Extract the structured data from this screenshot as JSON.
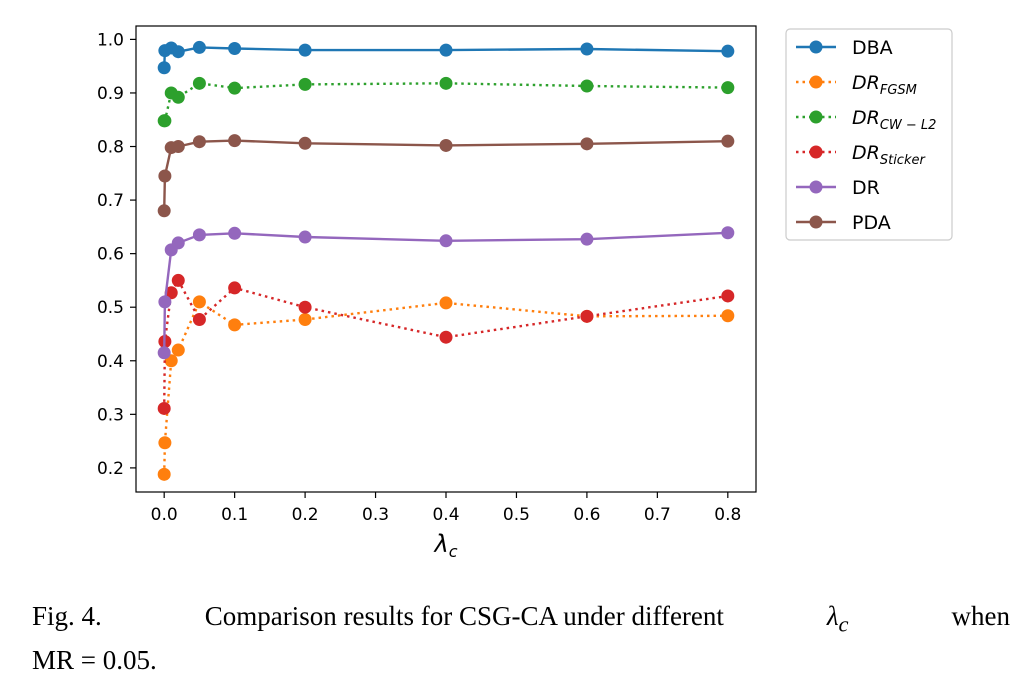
{
  "chart_data": {
    "type": "line",
    "xlabel": "λ",
    "xlabel_sub": "c",
    "xlim": [
      -0.04,
      0.84
    ],
    "ylim": [
      0.155,
      1.025
    ],
    "x_ticks": [
      0.0,
      0.1,
      0.2,
      0.3,
      0.4,
      0.5,
      0.6,
      0.7,
      0.8
    ],
    "x_tick_labels": [
      "0.0",
      "0.1",
      "0.2",
      "0.3",
      "0.4",
      "0.5",
      "0.6",
      "0.7",
      "0.8"
    ],
    "y_ticks": [
      0.2,
      0.3,
      0.4,
      0.5,
      0.6,
      0.7,
      0.8,
      0.9,
      1.0
    ],
    "y_tick_labels": [
      "0.2",
      "0.3",
      "0.4",
      "0.5",
      "0.6",
      "0.7",
      "0.8",
      "0.9",
      "1.0"
    ],
    "grid": false,
    "legend_position": "outside-right",
    "x": [
      0,
      0.001,
      0.01,
      0.02,
      0.05,
      0.1,
      0.2,
      0.4,
      0.6,
      0.8
    ],
    "series": [
      {
        "name": "DBA",
        "legend_main": "DBA",
        "legend_sub": "",
        "color": "#1f77b4",
        "style": "solid",
        "values": [
          0.947,
          0.979,
          0.984,
          0.977,
          0.985,
          0.983,
          0.98,
          0.98,
          0.982,
          0.978
        ]
      },
      {
        "name": "DR_FGSM",
        "legend_main": "DR",
        "legend_sub": "FGSM",
        "color": "#ff7f0e",
        "style": "dotted",
        "values": [
          0.188,
          0.247,
          0.4,
          0.42,
          0.51,
          0.467,
          0.477,
          0.508,
          0.483,
          0.484
        ]
      },
      {
        "name": "DR_CW-L2",
        "legend_main": "DR",
        "legend_sub": "CW − L2",
        "color": "#2ca02c",
        "style": "dotted",
        "values": [
          0.848,
          0.848,
          0.9,
          0.892,
          0.918,
          0.909,
          0.916,
          0.918,
          0.913,
          0.91
        ]
      },
      {
        "name": "DR_Sticker",
        "legend_main": "DR",
        "legend_sub": "Sticker",
        "color": "#d62728",
        "style": "dotted",
        "values": [
          0.311,
          0.436,
          0.527,
          0.55,
          0.477,
          0.536,
          0.5,
          0.444,
          0.483,
          0.521
        ]
      },
      {
        "name": "DR",
        "legend_main": "DR",
        "legend_sub": "",
        "color": "#9467bd",
        "style": "solid",
        "values": [
          0.415,
          0.51,
          0.607,
          0.62,
          0.635,
          0.638,
          0.631,
          0.624,
          0.627,
          0.639
        ]
      },
      {
        "name": "PDA",
        "legend_main": "PDA",
        "legend_sub": "",
        "color": "#8c564b",
        "style": "solid",
        "values": [
          0.68,
          0.745,
          0.798,
          0.8,
          0.809,
          0.811,
          0.806,
          0.802,
          0.805,
          0.81
        ]
      }
    ]
  },
  "caption": {
    "fig_label": "Fig. 4.",
    "text_before": "Comparison results for CSG-CA under different",
    "lambda_symbol": "λ",
    "lambda_sub": "c",
    "text_after": "when",
    "line2": "MR = 0.05."
  }
}
